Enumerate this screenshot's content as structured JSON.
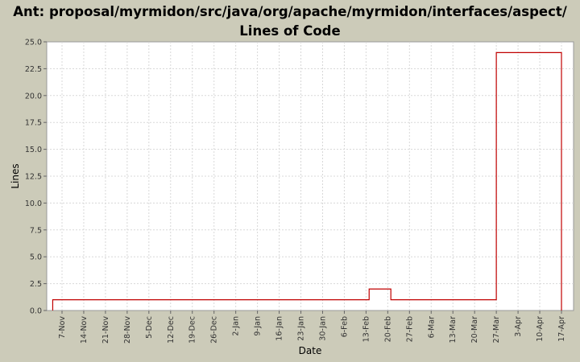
{
  "chart_data": {
    "type": "line",
    "step": true,
    "title": "Ant: proposal/myrmidon/src/java/org/apache/myrmidon/interfaces/aspect/ Lines of Code",
    "xlabel": "Date",
    "ylabel": "Lines",
    "ylim": [
      0,
      25
    ],
    "yticks": [
      "0.0",
      "2.5",
      "5.0",
      "7.5",
      "10.0",
      "12.5",
      "15.0",
      "17.5",
      "20.0",
      "22.5",
      "25.0"
    ],
    "xticks": [
      "7-Nov",
      "14-Nov",
      "21-Nov",
      "28-Nov",
      "5-Dec",
      "12-Dec",
      "19-Dec",
      "26-Dec",
      "2-Jan",
      "9-Jan",
      "16-Jan",
      "23-Jan",
      "30-Jan",
      "6-Feb",
      "13-Feb",
      "20-Feb",
      "27-Feb",
      "6-Mar",
      "13-Mar",
      "20-Mar",
      "27-Mar",
      "3-Apr",
      "10-Apr",
      "17-Apr"
    ],
    "grid": true,
    "legend": "none",
    "colors": {
      "line": "#c00000",
      "plot_bg": "#ffffff",
      "grid": "#d8d8d8",
      "page_bg": "#cccbb9"
    },
    "series": [
      {
        "points": [
          [
            "4-Nov",
            0
          ],
          [
            "4-Nov",
            1
          ],
          [
            "14-Feb",
            1
          ],
          [
            "14-Feb",
            2
          ],
          [
            "21-Feb",
            2
          ],
          [
            "21-Feb",
            1
          ],
          [
            "27-Mar",
            1
          ],
          [
            "27-Mar",
            24
          ],
          [
            "17-Apr",
            24
          ],
          [
            "17-Apr",
            0
          ]
        ]
      }
    ]
  }
}
